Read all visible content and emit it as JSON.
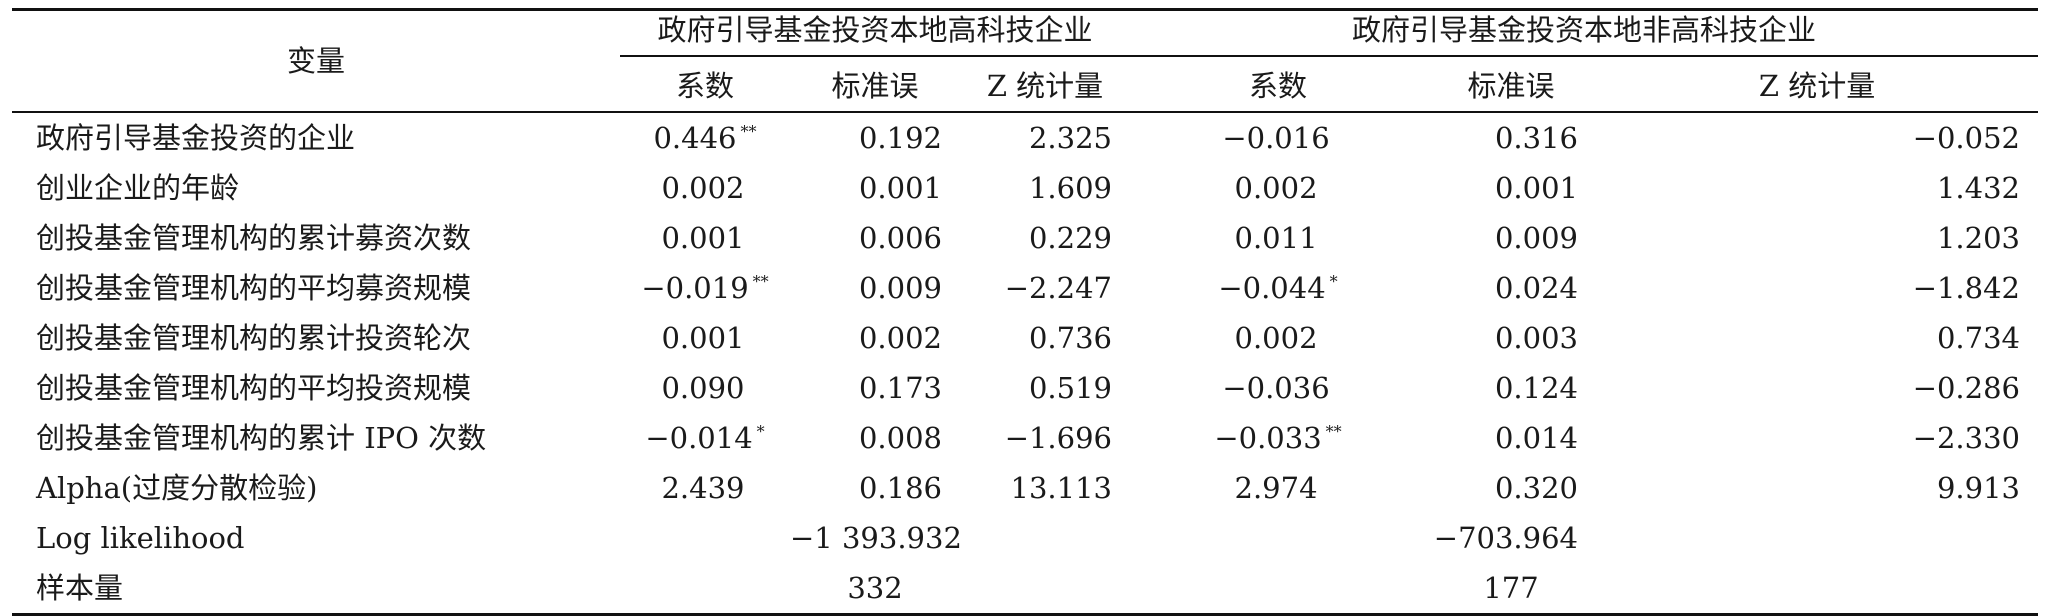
{
  "header": {
    "variable": "变量",
    "group1": "政府引导基金投资本地高科技企业",
    "group2": "政府引导基金投资本地非高科技企业",
    "subcols": [
      "系数",
      "标准误",
      "Z 统计量"
    ]
  },
  "rows": [
    {
      "label": "政府引导基金投资的企业",
      "g1": {
        "coef": "0.446",
        "sig": "**",
        "se": "0.192",
        "z": "2.325"
      },
      "g2": {
        "coef": "−0.016",
        "sig": "",
        "se": "0.316",
        "z": "−0.052"
      }
    },
    {
      "label": "创业企业的年龄",
      "g1": {
        "coef": "0.002",
        "sig": "",
        "se": "0.001",
        "z": "1.609"
      },
      "g2": {
        "coef": "0.002",
        "sig": "",
        "se": "0.001",
        "z": "1.432"
      }
    },
    {
      "label": "创投基金管理机构的累计募资次数",
      "g1": {
        "coef": "0.001",
        "sig": "",
        "se": "0.006",
        "z": "0.229"
      },
      "g2": {
        "coef": "0.011",
        "sig": "",
        "se": "0.009",
        "z": "1.203"
      }
    },
    {
      "label": "创投基金管理机构的平均募资规模",
      "g1": {
        "coef": "−0.019",
        "sig": "**",
        "se": "0.009",
        "z": "−2.247"
      },
      "g2": {
        "coef": "−0.044",
        "sig": "*",
        "se": "0.024",
        "z": "−1.842"
      }
    },
    {
      "label": "创投基金管理机构的累计投资轮次",
      "g1": {
        "coef": "0.001",
        "sig": "",
        "se": "0.002",
        "z": "0.736"
      },
      "g2": {
        "coef": "0.002",
        "sig": "",
        "se": "0.003",
        "z": "0.734"
      }
    },
    {
      "label": "创投基金管理机构的平均投资规模",
      "g1": {
        "coef": "0.090",
        "sig": "",
        "se": "0.173",
        "z": "0.519"
      },
      "g2": {
        "coef": "−0.036",
        "sig": "",
        "se": "0.124",
        "z": "−0.286"
      }
    },
    {
      "label": "创投基金管理机构的累计 IPO 次数",
      "g1": {
        "coef": "−0.014",
        "sig": "*",
        "se": "0.008",
        "z": "−1.696"
      },
      "g2": {
        "coef": "−0.033",
        "sig": "**",
        "se": "0.014",
        "z": "−2.330"
      }
    },
    {
      "label": "Alpha(过度分散检验)",
      "g1": {
        "coef": "2.439",
        "sig": "",
        "se": "0.186",
        "z": "13.113"
      },
      "g2": {
        "coef": "2.974",
        "sig": "",
        "se": "0.320",
        "z": "9.913"
      }
    }
  ],
  "loglik": {
    "label": "Log likelihood",
    "g1": "−1 393.932",
    "g2": "−703.964"
  },
  "n": {
    "label": "样本量",
    "g1": "332",
    "g2": "177"
  }
}
